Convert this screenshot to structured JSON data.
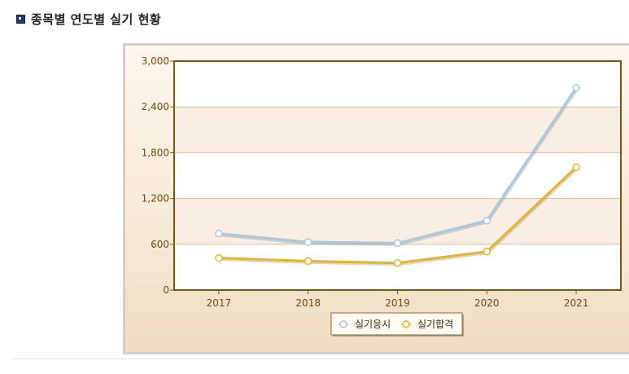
{
  "page": {
    "heading": "종목별 연도별 실기 현황"
  },
  "colors": {
    "series_applicants": "#a9c8dc",
    "series_passed": "#e4b52c",
    "axis": "#7a5410",
    "grid": "#d9b994"
  },
  "chart_data": {
    "type": "line",
    "title": "",
    "xlabel": "",
    "ylabel": "",
    "x": [
      "2017",
      "2018",
      "2019",
      "2020",
      "2021"
    ],
    "ylim": [
      0,
      3000
    ],
    "yticks": [
      "0",
      "600",
      "1,200",
      "1,800",
      "2,400",
      "3,000"
    ],
    "ytick_values": [
      0,
      600,
      1200,
      1800,
      2400,
      3000
    ],
    "grid": true,
    "legend_position": "bottom-center",
    "series": [
      {
        "name": "실기응시",
        "values": [
          740,
          630,
          615,
          910,
          2650
        ]
      },
      {
        "name": "실기합격",
        "values": [
          420,
          380,
          355,
          505,
          1610
        ]
      }
    ]
  }
}
